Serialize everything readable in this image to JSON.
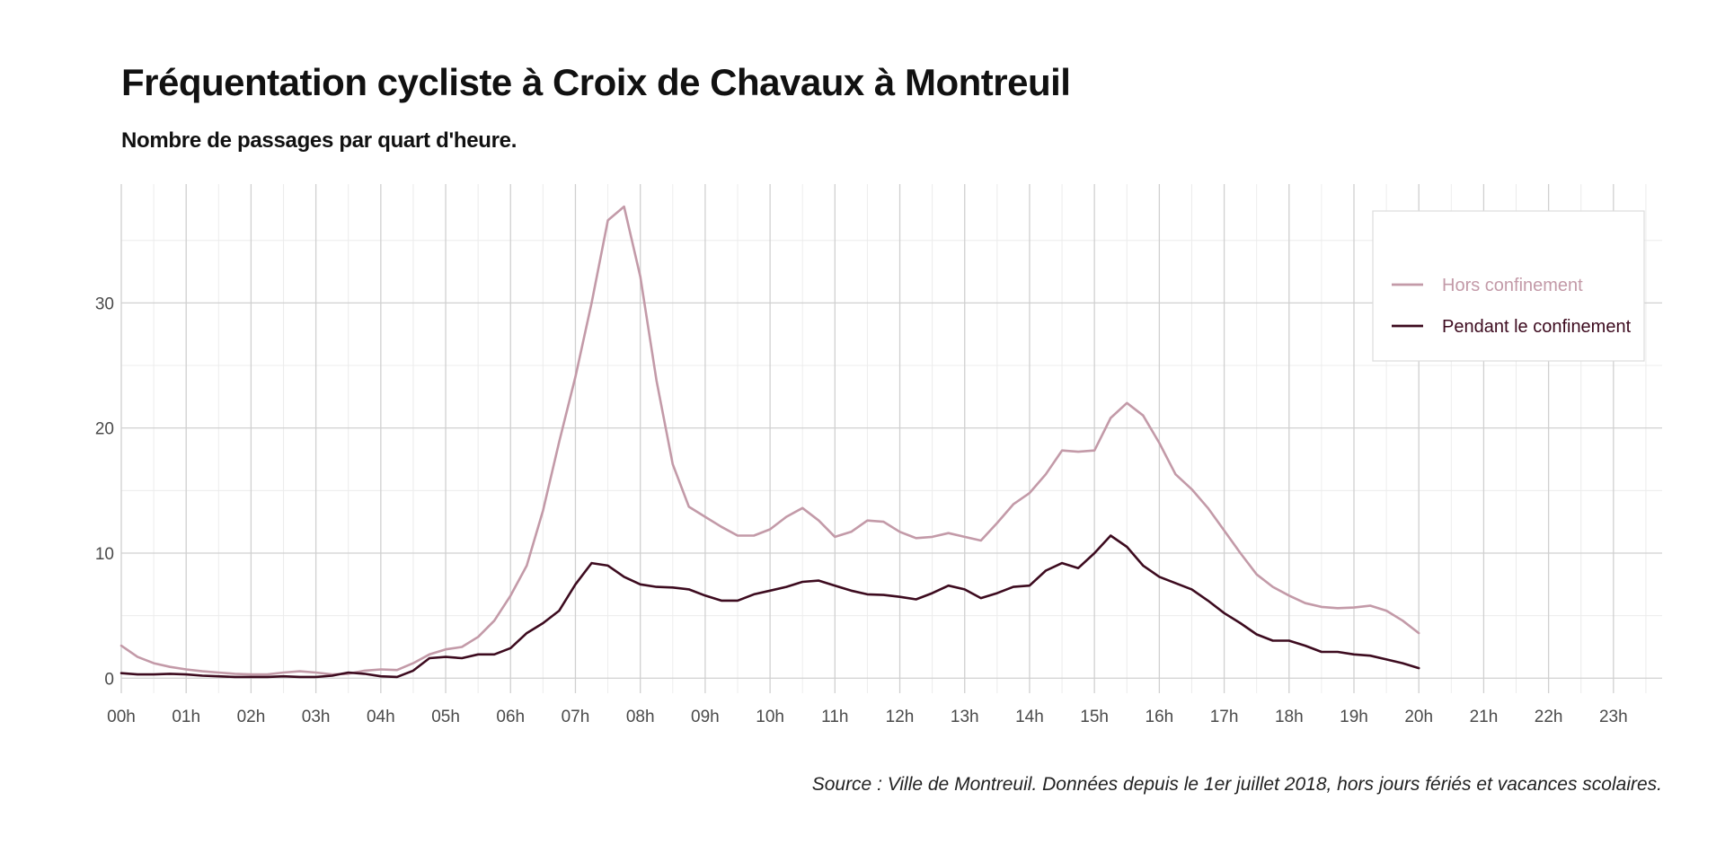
{
  "title": "Fréquentation cycliste à Croix de Chavaux à Montreuil",
  "subtitle": "Nombre de passages par quart d'heure.",
  "caption": "Source : Ville de Montreuil. Données depuis le 1er juillet 2018, hors jours fériés et vacances scolaires.",
  "chart_data": {
    "type": "line",
    "title": "Fréquentation cycliste à Croix de Chavaux à Montreuil",
    "subtitle": "Nombre de passages par quart d'heure.",
    "xlabel": "",
    "ylabel": "",
    "x_unit": "quart d'heure (index 0 = 00h00)",
    "x_tick_labels": [
      "00h",
      "01h",
      "02h",
      "03h",
      "04h",
      "05h",
      "06h",
      "07h",
      "08h",
      "09h",
      "10h",
      "11h",
      "12h",
      "13h",
      "14h",
      "15h",
      "16h",
      "17h",
      "18h",
      "19h",
      "20h",
      "21h",
      "22h",
      "23h"
    ],
    "y_ticks": [
      0,
      10,
      20,
      30
    ],
    "xlim": [
      0,
      95
    ],
    "ylim": [
      -1.2,
      39.5
    ],
    "grid": true,
    "legend_position": "top-right",
    "series": [
      {
        "name": "Hors confinement",
        "color": "#c39aa8",
        "values": [
          2.6,
          1.7,
          1.2,
          0.9,
          0.7,
          0.55,
          0.45,
          0.35,
          0.3,
          0.3,
          0.45,
          0.55,
          0.45,
          0.3,
          0.35,
          0.6,
          0.7,
          0.65,
          1.2,
          1.9,
          2.3,
          2.5,
          3.3,
          4.6,
          6.6,
          9.0,
          13.4,
          18.9,
          24.1,
          30.0,
          36.6,
          37.7,
          32.1,
          23.8,
          17.1,
          13.7,
          12.9,
          12.1,
          11.4,
          11.4,
          11.9,
          12.9,
          13.6,
          12.6,
          11.3,
          11.7,
          12.6,
          12.5,
          11.7,
          11.2,
          11.3,
          11.6,
          11.3,
          11.0,
          12.4,
          13.9,
          14.8,
          16.3,
          18.2,
          18.1,
          18.2,
          20.8,
          22.0,
          21.0,
          18.8,
          16.3,
          15.1,
          13.6,
          11.8,
          10.0,
          8.3,
          7.3,
          6.6,
          6.0,
          5.7,
          5.6,
          5.65,
          5.8,
          5.4,
          4.6,
          3.6
        ]
      },
      {
        "name": "Pendant le confinement",
        "color": "#3d0b1f",
        "values": [
          0.4,
          0.3,
          0.3,
          0.35,
          0.3,
          0.2,
          0.15,
          0.1,
          0.1,
          0.1,
          0.15,
          0.1,
          0.1,
          0.2,
          0.45,
          0.35,
          0.15,
          0.1,
          0.6,
          1.6,
          1.7,
          1.6,
          1.9,
          1.9,
          2.4,
          3.6,
          4.4,
          5.4,
          7.5,
          9.2,
          9.0,
          8.1,
          7.5,
          7.3,
          7.25,
          7.1,
          6.6,
          6.2,
          6.2,
          6.7,
          7.0,
          7.3,
          7.7,
          7.8,
          7.4,
          7.0,
          6.7,
          6.65,
          6.5,
          6.3,
          6.8,
          7.4,
          7.1,
          6.4,
          6.8,
          7.3,
          7.4,
          8.6,
          9.2,
          8.8,
          10.0,
          11.4,
          10.5,
          9.0,
          8.1,
          7.6,
          7.1,
          6.2,
          5.2,
          4.4,
          3.5,
          3.0,
          3.0,
          2.6,
          2.1,
          2.1,
          1.9,
          1.8,
          1.5,
          1.2,
          0.8
        ]
      }
    ]
  }
}
